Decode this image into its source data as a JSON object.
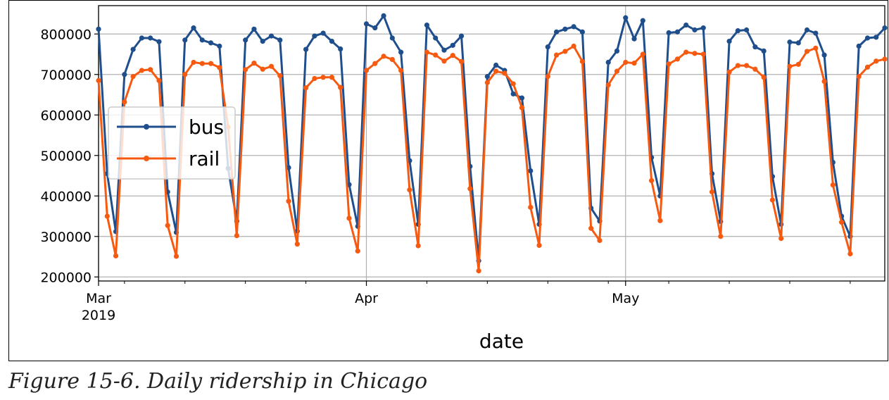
{
  "caption": "Figure 15-6. Daily ridership in Chicago",
  "chart_data": {
    "type": "line",
    "xlabel": "date",
    "ylabel": "",
    "title": "",
    "x_start": "2019-03-01",
    "x_end": "2019-05-31",
    "ylim": [
      190000,
      870000
    ],
    "yticks": [
      200000,
      300000,
      400000,
      500000,
      600000,
      700000,
      800000
    ],
    "major_x_ticks": [
      {
        "date": "2019-03-01",
        "label": "Mar",
        "sublabel": "2019"
      },
      {
        "date": "2019-04-01",
        "label": "Apr",
        "sublabel": ""
      },
      {
        "date": "2019-05-01",
        "label": "May",
        "sublabel": ""
      }
    ],
    "minor_x_ticks": [
      "2019-03-04",
      "2019-03-11",
      "2019-03-18",
      "2019-03-25",
      "2019-04-08",
      "2019-04-15",
      "2019-04-22",
      "2019-04-29",
      "2019-05-06",
      "2019-05-13",
      "2019-05-20",
      "2019-05-27"
    ],
    "grid": true,
    "legend_position": "left",
    "series": [
      {
        "name": "bus",
        "color": "#1f4e8c",
        "values": [
          812000,
          455000,
          312000,
          700000,
          762000,
          790000,
          790000,
          781000,
          410000,
          310000,
          785000,
          815000,
          785000,
          778000,
          770000,
          468000,
          338000,
          785000,
          812000,
          782000,
          795000,
          785000,
          470000,
          313000,
          762000,
          795000,
          802000,
          782000,
          763000,
          428000,
          325000,
          825000,
          815000,
          845000,
          790000,
          755000,
          487000,
          330000,
          822000,
          790000,
          760000,
          772000,
          795000,
          473000,
          240000,
          695000,
          723000,
          710000,
          652000,
          642000,
          462000,
          330000,
          768000,
          805000,
          812000,
          818000,
          805000,
          370000,
          338000,
          730000,
          758000,
          840000,
          788000,
          833000,
          495000,
          400000,
          803000,
          805000,
          822000,
          810000,
          815000,
          455000,
          337000,
          782000,
          808000,
          810000,
          768000,
          758000,
          448000,
          330000,
          780000,
          778000,
          810000,
          802000,
          748000,
          483000,
          350000,
          300000,
          770000,
          790000,
          792000,
          815000
        ]
      },
      {
        "name": "rail",
        "color": "#f55a10",
        "values": [
          685000,
          350000,
          252000,
          632000,
          695000,
          710000,
          712000,
          685000,
          327000,
          251000,
          700000,
          730000,
          727000,
          727000,
          717000,
          570000,
          302000,
          712000,
          728000,
          713000,
          720000,
          697000,
          387000,
          281000,
          667000,
          690000,
          693000,
          693000,
          668000,
          345000,
          264000,
          710000,
          727000,
          745000,
          737000,
          710000,
          415000,
          277000,
          755000,
          748000,
          733000,
          747000,
          732000,
          418000,
          215000,
          680000,
          708000,
          703000,
          677000,
          618000,
          372000,
          278000,
          695000,
          748000,
          757000,
          770000,
          732000,
          320000,
          290000,
          674000,
          708000,
          730000,
          728000,
          750000,
          438000,
          339000,
          726000,
          738000,
          755000,
          752000,
          750000,
          410000,
          300000,
          706000,
          722000,
          722000,
          713000,
          693000,
          390000,
          295000,
          720000,
          725000,
          757000,
          765000,
          683000,
          427000,
          335000,
          257000,
          695000,
          718000,
          733000,
          738000
        ]
      }
    ]
  }
}
